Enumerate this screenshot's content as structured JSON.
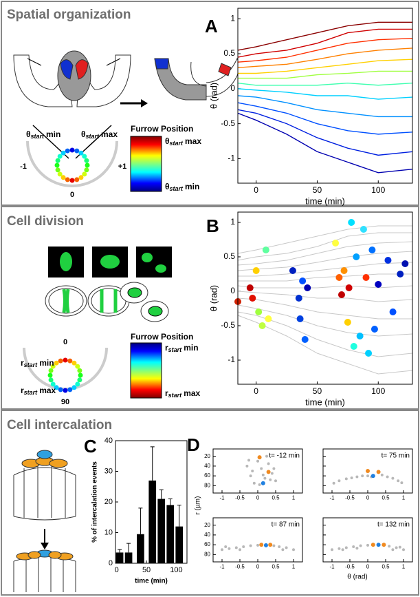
{
  "sections": [
    {
      "title": "Spatial organization"
    },
    {
      "title": "Cell division"
    },
    {
      "title": "Cell intercalation"
    }
  ],
  "panel_labels": [
    "A",
    "B",
    "C",
    "D"
  ],
  "legends": [
    {
      "title": "Furrow Position",
      "top": {
        "symbol": "θ",
        "sub": "start",
        "word": "max"
      },
      "bottom": {
        "symbol": "θ",
        "sub": "start",
        "word": "min"
      }
    },
    {
      "title": "Furrow Position",
      "top": {
        "symbol": "r",
        "sub": "start",
        "word": "min"
      },
      "bottom": {
        "symbol": "r",
        "sub": "start",
        "word": "max"
      }
    }
  ],
  "dials": [
    {
      "left": {
        "symbol": "θ",
        "sub": "start",
        "word": "min"
      },
      "right": {
        "symbol": "θ",
        "sub": "start",
        "word": "max"
      },
      "labels": [
        "-1",
        "+1",
        "0"
      ]
    },
    {
      "left": {
        "symbol": "r",
        "sub": "start",
        "word": "min"
      },
      "right": {
        "symbol": "r",
        "sub": "start",
        "word": "max"
      },
      "labels": [
        "0",
        "90"
      ]
    }
  ],
  "chart_data": [
    {
      "type": "line",
      "xlabel": "time (min)",
      "ylabel": "θ (rad)",
      "xlim": [
        -15,
        128
      ],
      "ylim": [
        -1.35,
        1.15
      ],
      "xticks": [
        0,
        50,
        100
      ],
      "yticks": [
        -1,
        -0.5,
        0,
        0.5,
        1
      ],
      "x": [
        -15,
        0,
        25,
        50,
        75,
        100,
        128
      ],
      "series": [
        {
          "color": "#8b0000",
          "values": [
            0.55,
            0.6,
            0.7,
            0.8,
            0.9,
            0.95,
            0.95
          ]
        },
        {
          "color": "#d00000",
          "values": [
            0.45,
            0.5,
            0.55,
            0.65,
            0.8,
            0.85,
            0.85
          ]
        },
        {
          "color": "#ff3000",
          "values": [
            0.38,
            0.4,
            0.45,
            0.55,
            0.65,
            0.7,
            0.72
          ]
        },
        {
          "color": "#ff8000",
          "values": [
            0.3,
            0.32,
            0.35,
            0.42,
            0.5,
            0.55,
            0.58
          ]
        },
        {
          "color": "#ffd000",
          "values": [
            0.22,
            0.22,
            0.25,
            0.3,
            0.35,
            0.4,
            0.42
          ]
        },
        {
          "color": "#a0ff40",
          "values": [
            0.15,
            0.15,
            0.15,
            0.2,
            0.22,
            0.25,
            0.25
          ]
        },
        {
          "color": "#40ffb0",
          "values": [
            0.08,
            0.05,
            0.05,
            0.05,
            0.08,
            0.05,
            0.08
          ]
        },
        {
          "color": "#00d0ff",
          "values": [
            0,
            -0.02,
            -0.05,
            -0.1,
            -0.1,
            -0.15,
            -0.12
          ]
        },
        {
          "color": "#0090ff",
          "values": [
            -0.1,
            -0.12,
            -0.2,
            -0.3,
            -0.35,
            -0.4,
            -0.4
          ]
        },
        {
          "color": "#0050ff",
          "values": [
            -0.2,
            -0.25,
            -0.35,
            -0.5,
            -0.6,
            -0.65,
            -0.62
          ]
        },
        {
          "color": "#0020e0",
          "values": [
            -0.3,
            -0.35,
            -0.5,
            -0.7,
            -0.85,
            -0.95,
            -0.9
          ]
        },
        {
          "color": "#0000b0",
          "values": [
            -0.35,
            -0.45,
            -0.65,
            -0.9,
            -1.05,
            -1.2,
            -1.15
          ]
        }
      ]
    },
    {
      "type": "scatter",
      "xlabel": "time (min)",
      "ylabel": "θ (rad)",
      "xlim": [
        -15,
        128
      ],
      "ylim": [
        -1.35,
        1.15
      ],
      "xticks": [
        0,
        50,
        100
      ],
      "yticks": [
        -1,
        -0.5,
        0,
        0.5,
        1
      ],
      "background_color": "#c8c8c8",
      "x": [
        -15,
        -5,
        -3,
        0,
        2,
        5,
        8,
        10,
        30,
        35,
        36,
        38,
        40,
        42,
        65,
        68,
        70,
        72,
        75,
        76,
        78,
        80,
        82,
        85,
        88,
        90,
        92,
        95,
        97,
        100,
        108,
        112,
        118,
        122
      ],
      "y": [
        -0.15,
        0.05,
        -0.1,
        0.3,
        -0.3,
        -0.5,
        0.6,
        -0.4,
        0.3,
        -0.1,
        -0.4,
        0.15,
        -0.7,
        0.05,
        0.7,
        0.2,
        -0.05,
        0.3,
        -0.45,
        0.05,
        1.0,
        -0.8,
        0.5,
        -0.65,
        0.9,
        0.2,
        -0.9,
        0.6,
        -0.55,
        0.1,
        0.45,
        -0.3,
        0.25,
        0.4
      ],
      "colors": [
        "#d02000",
        "#c00000",
        "#e01000",
        "#ffd000",
        "#a0ff40",
        "#c0ff40",
        "#60ffa0",
        "#ffff40",
        "#0020c0",
        "#0030d0",
        "#0040e0",
        "#0050ff",
        "#0060ff",
        "#0000b0",
        "#ffff40",
        "#ff6000",
        "#c00000",
        "#ff9000",
        "#ffd000",
        "#d00000",
        "#00e0ff",
        "#20ffe0",
        "#00a0ff",
        "#00c0ff",
        "#30e0ff",
        "#ff3000",
        "#00d0ff",
        "#0070ff",
        "#0060ff",
        "#0000c0",
        "#0030e0",
        "#0050ff",
        "#0020c0",
        "#0010b0"
      ]
    },
    {
      "type": "bar",
      "xlabel": "time (min)",
      "ylabel": "% of intercalation events",
      "xlim": [
        -2,
        118
      ],
      "ylim": [
        0,
        40
      ],
      "xticks": [
        0,
        50,
        100
      ],
      "yticks": [
        0,
        10,
        20,
        30,
        40
      ],
      "color": "#000000",
      "x": [
        5,
        20,
        40,
        60,
        75,
        90,
        105
      ],
      "values": [
        3.5,
        3.5,
        9.5,
        27,
        21,
        19,
        12
      ],
      "errors": [
        1,
        3,
        8.5,
        11,
        3,
        2,
        7
      ]
    },
    {
      "type": "scatter-grid",
      "xlabel": "θ (rad)",
      "ylabel": "r (µm)",
      "xlim": [
        -1.25,
        1.25
      ],
      "ylim": [
        5,
        95
      ],
      "yreverse": true,
      "xticks": [
        -1,
        -0.5,
        0,
        0.5,
        1
      ],
      "yticks": [
        20,
        40,
        60,
        80
      ],
      "panels": [
        {
          "title": "t= -12 min",
          "gray": {
            "x": [
              -0.3,
              -0.2,
              -0.1,
              0,
              0.1,
              0.2,
              0.3,
              0.4,
              0.5,
              -0.15,
              0.05,
              0.25,
              0.45,
              0.35,
              -0.25,
              0.15
            ],
            "y": [
              40,
              60,
              75,
              30,
              45,
              65,
              35,
              55,
              70,
              50,
              78,
              20,
              45,
              68,
              28,
              58
            ]
          },
          "orange": {
            "x": [
              0.05,
              0.3
            ],
            "y": [
              22,
              52
            ]
          },
          "blue": {
            "x": [
              0.15
            ],
            "y": [
              75
            ]
          }
        },
        {
          "title": "t= 75 min",
          "gray": {
            "x": [
              -0.95,
              -0.8,
              -0.6,
              -0.45,
              -0.3,
              -0.15,
              0,
              0.1,
              0.4,
              0.55,
              0.7,
              0.85,
              0.95
            ],
            "y": [
              75,
              70,
              66,
              64,
              62,
              60,
              60,
              62,
              58,
              62,
              65,
              70,
              74
            ]
          },
          "orange": {
            "x": [
              0,
              0.3
            ],
            "y": [
              50,
              52
            ]
          },
          "blue": {
            "x": [
              0.15
            ],
            "y": [
              60
            ]
          }
        },
        {
          "title": "t= 87 min",
          "gray": {
            "x": [
              -1,
              -0.8,
              -0.6,
              -0.4,
              -0.2,
              0,
              0.45,
              0.6,
              0.8,
              1,
              -0.5,
              0.7,
              -0.9
            ],
            "y": [
              70,
              68,
              66,
              64,
              62,
              61,
              62,
              64,
              66,
              70,
              70,
              70,
              64
            ]
          },
          "orange": {
            "x": [
              0.1,
              0.35
            ],
            "y": [
              60,
              60
            ]
          },
          "blue": {
            "x": [
              0.23
            ],
            "y": [
              61
            ]
          }
        },
        {
          "title": "t= 132 min",
          "gray": {
            "x": [
              -1,
              -0.8,
              -0.6,
              -0.4,
              -0.2,
              0,
              0.6,
              0.8,
              1,
              -0.7,
              0.7,
              -0.3,
              0.9
            ],
            "y": [
              70,
              68,
              66,
              64,
              62,
              61,
              63,
              66,
              70,
              70,
              70,
              67,
              65
            ]
          },
          "orange": {
            "x": [
              0.15,
              0.45
            ],
            "y": [
              60,
              60
            ]
          },
          "blue": {
            "x": [
              0.3
            ],
            "y": [
              60
            ]
          }
        }
      ]
    }
  ]
}
